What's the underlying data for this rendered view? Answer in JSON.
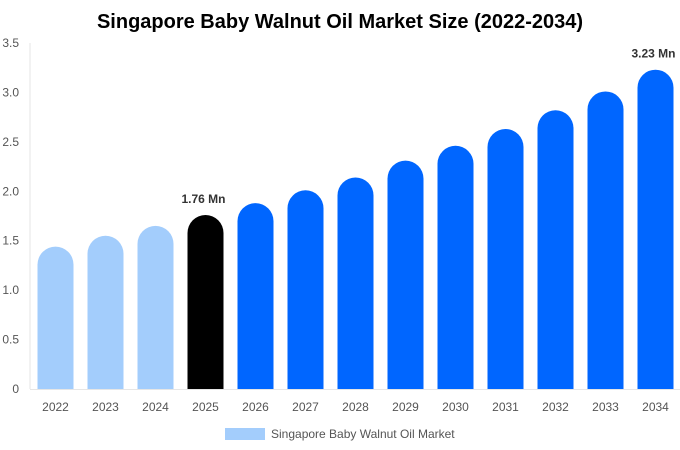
{
  "chart_data": {
    "type": "bar",
    "title": "Singapore Baby Walnut Oil Market Size (2022-2034)",
    "xlabel": "",
    "ylabel": "",
    "categories": [
      "2022",
      "2023",
      "2024",
      "2025",
      "2026",
      "2027",
      "2028",
      "2029",
      "2030",
      "2031",
      "2032",
      "2033",
      "2034"
    ],
    "series": [
      {
        "name": "Singapore Baby Walnut Oil Market",
        "values": [
          1.44,
          1.55,
          1.65,
          1.76,
          1.88,
          2.01,
          2.14,
          2.31,
          2.46,
          2.63,
          2.82,
          3.01,
          3.23
        ]
      }
    ],
    "ylim": [
      0,
      3.5
    ],
    "yticks": [
      "0",
      "0.5",
      "1.0",
      "1.5",
      "2.0",
      "2.5",
      "3.0",
      "3.5"
    ],
    "data_labels": [
      {
        "category": "2025",
        "text": "1.76 Mn"
      },
      {
        "category": "2034",
        "text": "3.23 Mn"
      }
    ],
    "colors": {
      "historical": "#a3cdfc",
      "base_year": "#000000",
      "forecast": "#0066ff"
    },
    "bar_color_by_category": [
      "historical",
      "historical",
      "historical",
      "base_year",
      "forecast",
      "forecast",
      "forecast",
      "forecast",
      "forecast",
      "forecast",
      "forecast",
      "forecast",
      "forecast"
    ],
    "grid": false,
    "legend_position": "bottom"
  }
}
